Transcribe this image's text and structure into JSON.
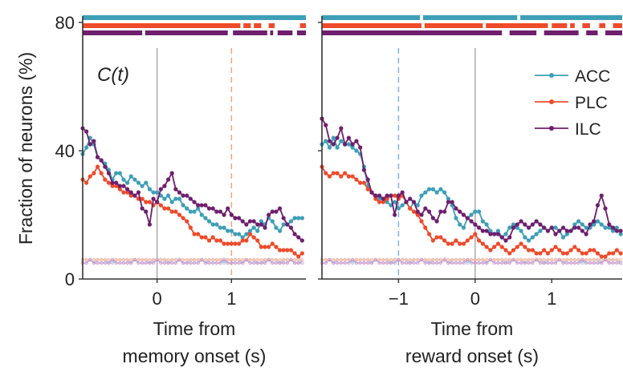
{
  "colors": {
    "ACC": "#3d9fb6",
    "PLC": "#ee4b2b",
    "ILC": "#6e1f6d",
    "axis": "#333333",
    "marker_line": "#aaaaaa"
  },
  "ylabel": "Fraction of neurons (%)",
  "legend": [
    {
      "key": "ACC",
      "label": "ACC"
    },
    {
      "key": "PLC",
      "label": "PLC"
    },
    {
      "key": "ILC",
      "label": "ILC"
    }
  ],
  "chart_data": [
    {
      "type": "line",
      "annotation": "C(t)",
      "xlabel_line1": "Time from",
      "xlabel_line2": "memory onset (s)",
      "xlim": [
        -1,
        2
      ],
      "ylim": [
        0,
        80
      ],
      "xticks": [
        0,
        1
      ],
      "xtick_labels": [
        "0",
        "1"
      ],
      "yticks": [
        0,
        40,
        80
      ],
      "ytick_labels": [
        "0",
        "40",
        "80"
      ],
      "vlines": [
        {
          "x": 0,
          "style": "solid",
          "color": "#aaaaaa"
        },
        {
          "x": 1,
          "style": "dashed",
          "color": "#f2a77e"
        }
      ],
      "x_start": -1.0,
      "x_step": 0.05,
      "series": [
        {
          "name": "ACC",
          "values": [
            39,
            41,
            44,
            42,
            38,
            37,
            36,
            34,
            31,
            33,
            33,
            31,
            30,
            32,
            31,
            30,
            29,
            30,
            28,
            27,
            27,
            26,
            25,
            26,
            24,
            25,
            25,
            23,
            22,
            21,
            21,
            22,
            20,
            19,
            18,
            17,
            17,
            16,
            16,
            15,
            15,
            14,
            14,
            13,
            14,
            15,
            16,
            15,
            18,
            17,
            19,
            18,
            16,
            15,
            17,
            17,
            18,
            19,
            19,
            19
          ]
        },
        {
          "name": "PLC",
          "values": [
            31,
            30,
            32,
            33,
            35,
            33,
            31,
            30,
            29,
            29,
            28,
            27,
            27,
            26,
            26,
            25,
            25,
            24,
            24,
            23,
            24,
            23,
            22,
            22,
            21,
            21,
            20,
            19,
            18,
            16,
            14,
            14,
            13,
            13,
            12,
            13,
            12,
            12,
            11,
            11,
            11,
            11,
            11,
            12,
            12,
            14,
            13,
            12,
            10,
            10,
            10,
            11,
            10,
            9,
            9,
            9,
            9,
            8,
            7,
            8
          ]
        },
        {
          "name": "ILC",
          "values": [
            47,
            46,
            42,
            43,
            38,
            37,
            35,
            33,
            30,
            30,
            29,
            29,
            28,
            27,
            26,
            27,
            22,
            21,
            17,
            25,
            24,
            28,
            29,
            31,
            33,
            28,
            27,
            26,
            26,
            25,
            24,
            23,
            23,
            23,
            22,
            22,
            21,
            21,
            20,
            22,
            20,
            19,
            19,
            18,
            17,
            18,
            18,
            17,
            17,
            16,
            20,
            21,
            21,
            22,
            19,
            17,
            16,
            14,
            13,
            12
          ]
        },
        {
          "name": "ACC-baseline",
          "values": [
            6,
            6,
            6,
            5,
            6,
            6,
            6,
            5,
            5,
            6,
            6,
            6,
            6,
            5,
            6,
            6,
            6,
            6,
            5,
            6,
            6,
            6,
            6,
            5,
            6,
            6,
            6,
            5,
            5,
            6,
            6,
            6,
            6,
            5,
            6,
            6,
            6,
            6,
            5,
            6,
            6,
            6,
            6,
            5,
            6,
            6,
            6,
            5,
            5,
            6,
            6,
            6,
            6,
            5,
            6,
            6,
            6,
            5,
            5,
            6
          ]
        },
        {
          "name": "PLC-baseline",
          "values": [
            6,
            6,
            6,
            6,
            6,
            6,
            6,
            6,
            6,
            6,
            6,
            6,
            6,
            6,
            6,
            6,
            6,
            6,
            6,
            6,
            6,
            6,
            6,
            6,
            6,
            6,
            6,
            6,
            6,
            6,
            6,
            6,
            6,
            6,
            6,
            6,
            6,
            6,
            6,
            6,
            6,
            6,
            6,
            6,
            6,
            6,
            6,
            6,
            6,
            6,
            6,
            6,
            6,
            6,
            6,
            6,
            6,
            6,
            6,
            6
          ]
        },
        {
          "name": "ILC-baseline",
          "values": [
            5,
            5,
            6,
            5,
            5,
            5,
            5,
            5,
            6,
            5,
            5,
            5,
            5,
            5,
            6,
            5,
            5,
            5,
            5,
            5,
            6,
            5,
            5,
            5,
            5,
            5,
            6,
            5,
            5,
            5,
            5,
            5,
            6,
            5,
            5,
            5,
            5,
            5,
            6,
            5,
            5,
            5,
            5,
            5,
            6,
            5,
            5,
            5,
            5,
            5,
            6,
            5,
            5,
            5,
            5,
            5,
            6,
            5,
            5,
            5
          ]
        }
      ],
      "significance_bars": [
        {
          "name": "ACC",
          "intervals": [
            [
              -1.0,
              2.0
            ]
          ]
        },
        {
          "name": "PLC",
          "intervals": [
            [
              -1.0,
              1.12
            ],
            [
              1.16,
              1.26
            ],
            [
              1.3,
              1.4
            ],
            [
              1.5,
              1.58
            ],
            [
              1.92,
              2.0
            ]
          ]
        },
        {
          "name": "ILC",
          "intervals": [
            [
              -1.0,
              -0.2
            ],
            [
              -0.16,
              0.95
            ],
            [
              1.02,
              1.48
            ],
            [
              1.52,
              1.56
            ],
            [
              1.62,
              1.82
            ],
            [
              1.88,
              2.0
            ]
          ]
        }
      ]
    },
    {
      "type": "line",
      "xlabel_line1": "Time from",
      "xlabel_line2": "reward onset (s)",
      "xlim": [
        -2,
        1.92
      ],
      "ylim": [
        0,
        80
      ],
      "xticks": [
        -1,
        0,
        1
      ],
      "xtick_labels": [
        "−1",
        "0",
        "1"
      ],
      "yticks": [
        0,
        40,
        80
      ],
      "vlines": [
        {
          "x": -1,
          "style": "dashed",
          "color": "#7fb2e5"
        },
        {
          "x": 0,
          "style": "solid",
          "color": "#aaaaaa"
        }
      ],
      "x_start": -2.0,
      "x_step": 0.05,
      "series": [
        {
          "name": "ACC",
          "values": [
            42,
            43,
            41,
            44,
            41,
            43,
            42,
            42,
            41,
            40,
            39,
            35,
            29,
            27,
            26,
            25,
            25,
            24,
            23,
            24,
            22,
            23,
            24,
            22,
            24,
            23,
            26,
            27,
            28,
            28,
            27,
            28,
            27,
            25,
            23,
            19,
            17,
            16,
            19,
            20,
            21,
            21,
            18,
            17,
            15,
            14,
            15,
            13,
            14,
            16,
            17,
            16,
            15,
            13,
            12,
            13,
            14,
            15,
            16,
            15,
            16,
            16,
            15,
            13,
            14,
            15,
            17,
            18,
            17,
            16,
            16,
            17,
            18,
            17,
            16,
            16,
            15,
            16,
            14
          ]
        },
        {
          "name": "PLC",
          "values": [
            35,
            33,
            32,
            33,
            33,
            32,
            33,
            32,
            32,
            31,
            30,
            30,
            28,
            27,
            25,
            24,
            24,
            25,
            26,
            26,
            25,
            26,
            24,
            22,
            21,
            20,
            18,
            16,
            14,
            12,
            13,
            13,
            12,
            11,
            11,
            12,
            11,
            11,
            12,
            13,
            14,
            12,
            11,
            10,
            9,
            10,
            11,
            10,
            9,
            8,
            9,
            10,
            11,
            10,
            9,
            9,
            8,
            8,
            9,
            8,
            9,
            10,
            9,
            8,
            8,
            9,
            10,
            9,
            8,
            8,
            9,
            9,
            8,
            7,
            7,
            8,
            8,
            9,
            8
          ]
        },
        {
          "name": "ILC",
          "values": [
            50,
            48,
            43,
            42,
            44,
            47,
            42,
            44,
            42,
            43,
            41,
            34,
            31,
            27,
            26,
            26,
            25,
            26,
            26,
            20,
            26,
            27,
            24,
            25,
            24,
            21,
            20,
            22,
            21,
            19,
            18,
            21,
            21,
            24,
            24,
            22,
            21,
            20,
            19,
            18,
            17,
            16,
            15,
            15,
            14,
            14,
            14,
            13,
            12,
            13,
            16,
            17,
            18,
            17,
            16,
            17,
            18,
            17,
            16,
            15,
            16,
            14,
            15,
            16,
            15,
            15,
            16,
            16,
            15,
            14,
            17,
            18,
            23,
            26,
            22,
            17,
            16,
            15,
            15
          ]
        },
        {
          "name": "ACC-baseline",
          "values": [
            6,
            6,
            6,
            5,
            6,
            6,
            6,
            6,
            5,
            6,
            6,
            6,
            6,
            5,
            6,
            6,
            6,
            6,
            5,
            6,
            6,
            6,
            6,
            5,
            6,
            6,
            6,
            6,
            5,
            6,
            6,
            6,
            6,
            5,
            6,
            6,
            6,
            6,
            5,
            6,
            6,
            6,
            6,
            5,
            6,
            6,
            6,
            6,
            5,
            6,
            6,
            6,
            6,
            5,
            6,
            6,
            6,
            6,
            5,
            6,
            6,
            6,
            6,
            5,
            6,
            6,
            6,
            6,
            5,
            6,
            6,
            6,
            6,
            5,
            6,
            6,
            6,
            6,
            5
          ]
        },
        {
          "name": "PLC-baseline",
          "values": [
            6,
            6,
            6,
            6,
            6,
            6,
            6,
            6,
            6,
            6,
            6,
            6,
            6,
            6,
            6,
            6,
            6,
            6,
            6,
            6,
            6,
            6,
            6,
            6,
            6,
            6,
            6,
            6,
            6,
            6,
            6,
            6,
            6,
            6,
            6,
            6,
            6,
            6,
            6,
            6,
            6,
            6,
            6,
            6,
            6,
            6,
            6,
            6,
            6,
            6,
            6,
            6,
            6,
            6,
            6,
            6,
            6,
            6,
            6,
            6,
            6,
            6,
            6,
            6,
            6,
            6,
            6,
            6,
            6,
            6,
            6,
            6,
            6,
            6,
            6,
            6,
            6,
            6,
            6
          ]
        },
        {
          "name": "ILC-baseline",
          "values": [
            5,
            5,
            6,
            5,
            5,
            5,
            5,
            5,
            6,
            5,
            5,
            5,
            5,
            5,
            6,
            5,
            5,
            5,
            5,
            5,
            6,
            5,
            5,
            5,
            5,
            5,
            6,
            5,
            5,
            5,
            5,
            5,
            6,
            5,
            5,
            5,
            5,
            5,
            6,
            5,
            5,
            5,
            5,
            5,
            6,
            5,
            5,
            5,
            5,
            5,
            6,
            5,
            5,
            5,
            5,
            5,
            6,
            5,
            5,
            5,
            5,
            5,
            6,
            5,
            5,
            5,
            5,
            5,
            6,
            5,
            5,
            5,
            5,
            5,
            6,
            5,
            5,
            5,
            5
          ]
        }
      ],
      "significance_bars": [
        {
          "name": "ACC",
          "intervals": [
            [
              -2.0,
              -0.72
            ],
            [
              -0.68,
              0.55
            ],
            [
              0.59,
              1.92
            ]
          ]
        },
        {
          "name": "PLC",
          "intervals": [
            [
              -2.0,
              -0.7
            ],
            [
              -0.66,
              0.1
            ],
            [
              0.14,
              0.95
            ],
            [
              1.0,
              1.2
            ],
            [
              1.24,
              1.3
            ],
            [
              1.4,
              1.5
            ],
            [
              1.62,
              1.7
            ],
            [
              1.8,
              1.92
            ]
          ]
        },
        {
          "name": "ILC",
          "intervals": [
            [
              -2.0,
              0.35
            ],
            [
              0.45,
              0.8
            ],
            [
              0.9,
              1.35
            ],
            [
              1.45,
              1.6
            ],
            [
              1.7,
              1.92
            ]
          ]
        }
      ]
    }
  ]
}
